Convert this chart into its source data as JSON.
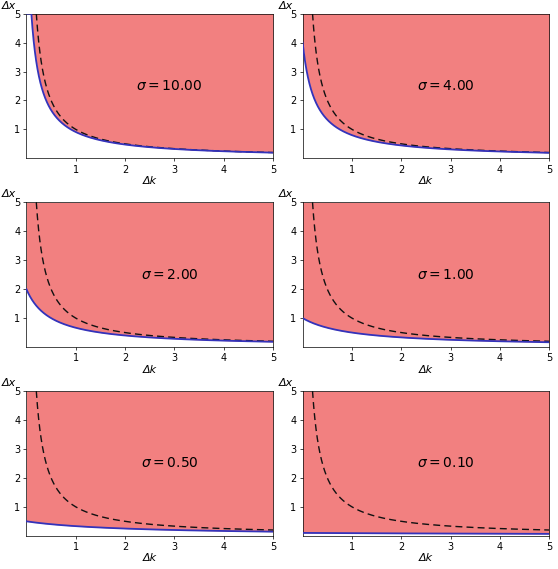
{
  "sigmas": [
    10.0,
    4.0,
    2.0,
    1.0,
    0.5,
    0.1
  ],
  "xlim": [
    0,
    5
  ],
  "ylim": [
    0,
    5
  ],
  "xlabel": "Δk",
  "ylabel": "Δx",
  "fill_color": "#f28080",
  "blue_color": "#3333bb",
  "dashed_color": "#111111",
  "background_color": "#ffffff",
  "label_fontsize": 8,
  "sigma_fontsize": 10,
  "tick_fontsize": 7
}
